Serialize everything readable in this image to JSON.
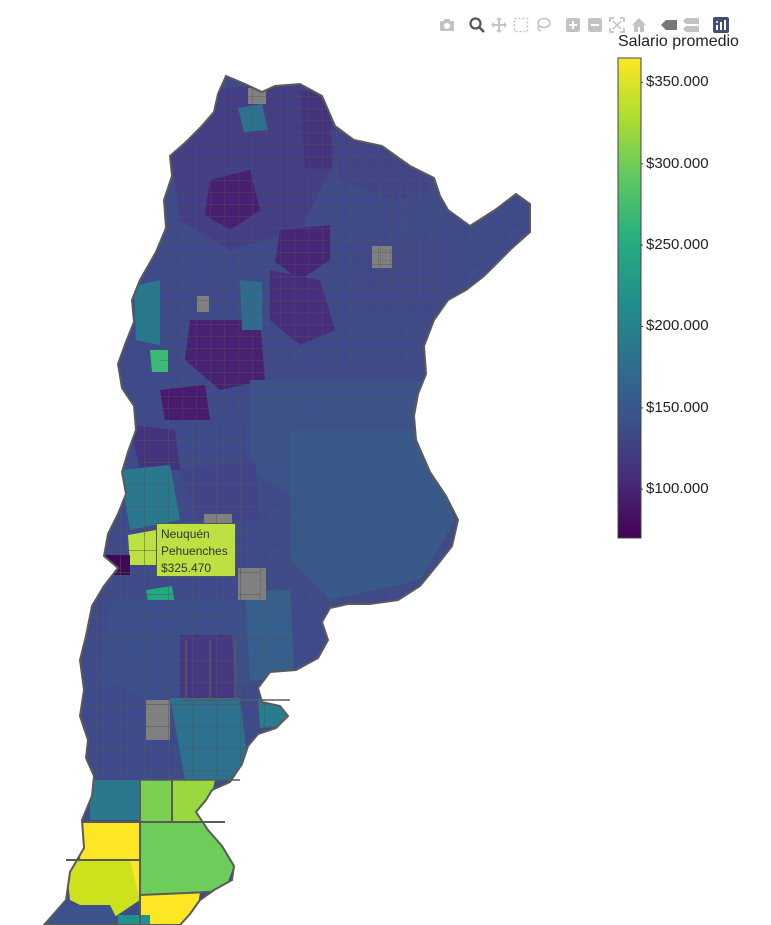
{
  "legend": {
    "title": "Salario promedio",
    "ticks": [
      {
        "label": "$350.000",
        "value": 350000
      },
      {
        "label": "$300.000",
        "value": 300000
      },
      {
        "label": "$250.000",
        "value": 250000
      },
      {
        "label": "$200.000",
        "value": 200000
      },
      {
        "label": "$150.000",
        "value": 150000
      },
      {
        "label": "$100.000",
        "value": 100000
      }
    ],
    "range": [
      70000,
      365000
    ],
    "colorscale": [
      "#440154",
      "#3b528b",
      "#21918c",
      "#5ec962",
      "#fde725"
    ]
  },
  "tooltip": {
    "province": "Neuquén",
    "department": "Pehuenches",
    "value_label": "$325.470",
    "color": "#bde043"
  },
  "map": {
    "border_color": "#5a5a5a",
    "no_data_color": "#808080"
  },
  "modebar": {
    "buttons": [
      "camera-icon",
      "zoom-icon",
      "pan-icon",
      "box-select-icon",
      "lasso-icon",
      "zoom-in-icon",
      "zoom-out-icon",
      "autoscale-icon",
      "reset-home-icon",
      "spike-lines-icon",
      "compare-hover-icon",
      "plotly-logo-icon"
    ]
  }
}
